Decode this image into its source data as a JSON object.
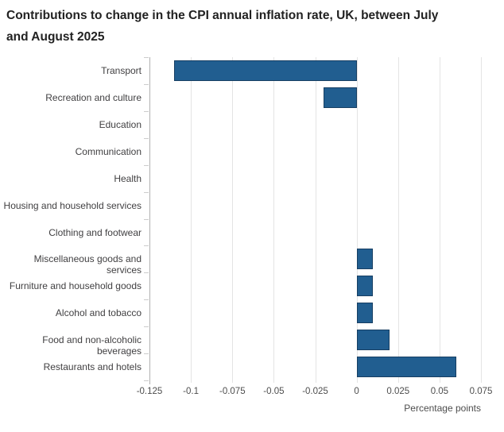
{
  "title_lines": [
    "Contributions to change in the CPI annual inflation rate, UK, between July",
    "and August 2025"
  ],
  "chart_data": {
    "type": "bar",
    "orientation": "horizontal",
    "title": "Contributions to change in the CPI annual inflation rate, UK, between July and August 2025",
    "categories": [
      "Transport",
      "Recreation and culture",
      "Education",
      "Communication",
      "Health",
      "Housing and household services",
      "Clothing and footwear",
      "Miscellaneous goods and services",
      "Furniture and household goods",
      "Alcohol and tobacco",
      "Food and non-alcoholic beverages",
      "Restaurants and hotels"
    ],
    "values": [
      -0.11,
      -0.02,
      0,
      0,
      0,
      0,
      0,
      0.01,
      0.01,
      0.01,
      0.02,
      0.06
    ],
    "xlabel": "Percentage points",
    "xlim": [
      -0.125,
      0.075
    ],
    "xtick_labels": [
      "-0.125",
      "-0.1",
      "-0.075",
      "-0.05",
      "-0.025",
      "0",
      "0.025",
      "0.05",
      "0.075"
    ],
    "grid": "vertical-only",
    "legend": "none",
    "colors": {
      "bar_fill": "#215e90",
      "bar_border": "#173f63",
      "gridline": "#e4e4e4",
      "axis_line": "#b0b0b0",
      "label_text": "#414042",
      "tick_text": "#4d4d4d",
      "title_text": "#222222"
    }
  }
}
